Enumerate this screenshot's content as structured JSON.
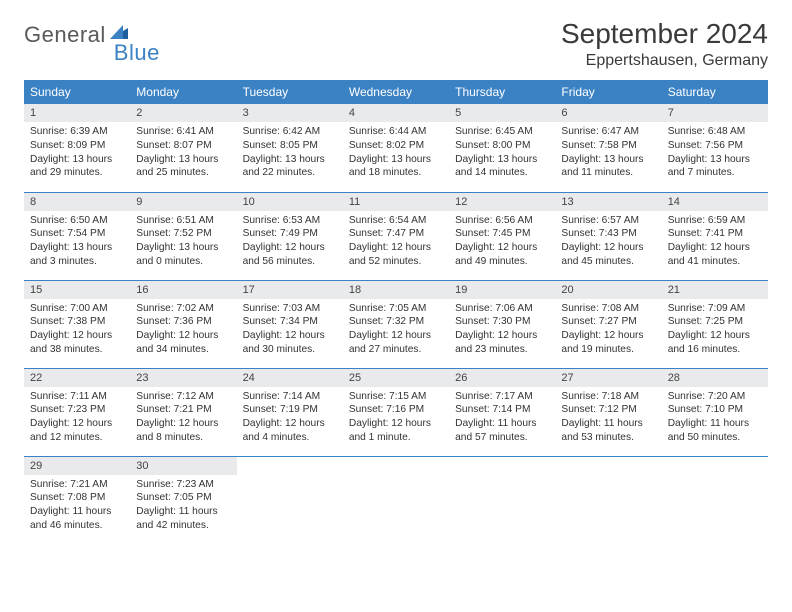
{
  "logo": {
    "text1": "General",
    "text2": "Blue"
  },
  "title": "September 2024",
  "location": "Eppertshausen, Germany",
  "colors": {
    "header_bg": "#3b82c4",
    "header_text": "#ffffff",
    "daynum_bg": "#e9eaeb",
    "rule": "#3b82c4",
    "logo_gray": "#5a5a5a",
    "logo_blue": "#3b82c4"
  },
  "weekdays": [
    "Sunday",
    "Monday",
    "Tuesday",
    "Wednesday",
    "Thursday",
    "Friday",
    "Saturday"
  ],
  "weeks": [
    [
      {
        "n": "1",
        "sunrise": "6:39 AM",
        "sunset": "8:09 PM",
        "dl": "13 hours and 29 minutes."
      },
      {
        "n": "2",
        "sunrise": "6:41 AM",
        "sunset": "8:07 PM",
        "dl": "13 hours and 25 minutes."
      },
      {
        "n": "3",
        "sunrise": "6:42 AM",
        "sunset": "8:05 PM",
        "dl": "13 hours and 22 minutes."
      },
      {
        "n": "4",
        "sunrise": "6:44 AM",
        "sunset": "8:02 PM",
        "dl": "13 hours and 18 minutes."
      },
      {
        "n": "5",
        "sunrise": "6:45 AM",
        "sunset": "8:00 PM",
        "dl": "13 hours and 14 minutes."
      },
      {
        "n": "6",
        "sunrise": "6:47 AM",
        "sunset": "7:58 PM",
        "dl": "13 hours and 11 minutes."
      },
      {
        "n": "7",
        "sunrise": "6:48 AM",
        "sunset": "7:56 PM",
        "dl": "13 hours and 7 minutes."
      }
    ],
    [
      {
        "n": "8",
        "sunrise": "6:50 AM",
        "sunset": "7:54 PM",
        "dl": "13 hours and 3 minutes."
      },
      {
        "n": "9",
        "sunrise": "6:51 AM",
        "sunset": "7:52 PM",
        "dl": "13 hours and 0 minutes."
      },
      {
        "n": "10",
        "sunrise": "6:53 AM",
        "sunset": "7:49 PM",
        "dl": "12 hours and 56 minutes."
      },
      {
        "n": "11",
        "sunrise": "6:54 AM",
        "sunset": "7:47 PM",
        "dl": "12 hours and 52 minutes."
      },
      {
        "n": "12",
        "sunrise": "6:56 AM",
        "sunset": "7:45 PM",
        "dl": "12 hours and 49 minutes."
      },
      {
        "n": "13",
        "sunrise": "6:57 AM",
        "sunset": "7:43 PM",
        "dl": "12 hours and 45 minutes."
      },
      {
        "n": "14",
        "sunrise": "6:59 AM",
        "sunset": "7:41 PM",
        "dl": "12 hours and 41 minutes."
      }
    ],
    [
      {
        "n": "15",
        "sunrise": "7:00 AM",
        "sunset": "7:38 PM",
        "dl": "12 hours and 38 minutes."
      },
      {
        "n": "16",
        "sunrise": "7:02 AM",
        "sunset": "7:36 PM",
        "dl": "12 hours and 34 minutes."
      },
      {
        "n": "17",
        "sunrise": "7:03 AM",
        "sunset": "7:34 PM",
        "dl": "12 hours and 30 minutes."
      },
      {
        "n": "18",
        "sunrise": "7:05 AM",
        "sunset": "7:32 PM",
        "dl": "12 hours and 27 minutes."
      },
      {
        "n": "19",
        "sunrise": "7:06 AM",
        "sunset": "7:30 PM",
        "dl": "12 hours and 23 minutes."
      },
      {
        "n": "20",
        "sunrise": "7:08 AM",
        "sunset": "7:27 PM",
        "dl": "12 hours and 19 minutes."
      },
      {
        "n": "21",
        "sunrise": "7:09 AM",
        "sunset": "7:25 PM",
        "dl": "12 hours and 16 minutes."
      }
    ],
    [
      {
        "n": "22",
        "sunrise": "7:11 AM",
        "sunset": "7:23 PM",
        "dl": "12 hours and 12 minutes."
      },
      {
        "n": "23",
        "sunrise": "7:12 AM",
        "sunset": "7:21 PM",
        "dl": "12 hours and 8 minutes."
      },
      {
        "n": "24",
        "sunrise": "7:14 AM",
        "sunset": "7:19 PM",
        "dl": "12 hours and 4 minutes."
      },
      {
        "n": "25",
        "sunrise": "7:15 AM",
        "sunset": "7:16 PM",
        "dl": "12 hours and 1 minute."
      },
      {
        "n": "26",
        "sunrise": "7:17 AM",
        "sunset": "7:14 PM",
        "dl": "11 hours and 57 minutes."
      },
      {
        "n": "27",
        "sunrise": "7:18 AM",
        "sunset": "7:12 PM",
        "dl": "11 hours and 53 minutes."
      },
      {
        "n": "28",
        "sunrise": "7:20 AM",
        "sunset": "7:10 PM",
        "dl": "11 hours and 50 minutes."
      }
    ],
    [
      {
        "n": "29",
        "sunrise": "7:21 AM",
        "sunset": "7:08 PM",
        "dl": "11 hours and 46 minutes."
      },
      {
        "n": "30",
        "sunrise": "7:23 AM",
        "sunset": "7:05 PM",
        "dl": "11 hours and 42 minutes."
      },
      null,
      null,
      null,
      null,
      null
    ]
  ],
  "labels": {
    "sunrise": "Sunrise:",
    "sunset": "Sunset:",
    "daylight": "Daylight:"
  }
}
